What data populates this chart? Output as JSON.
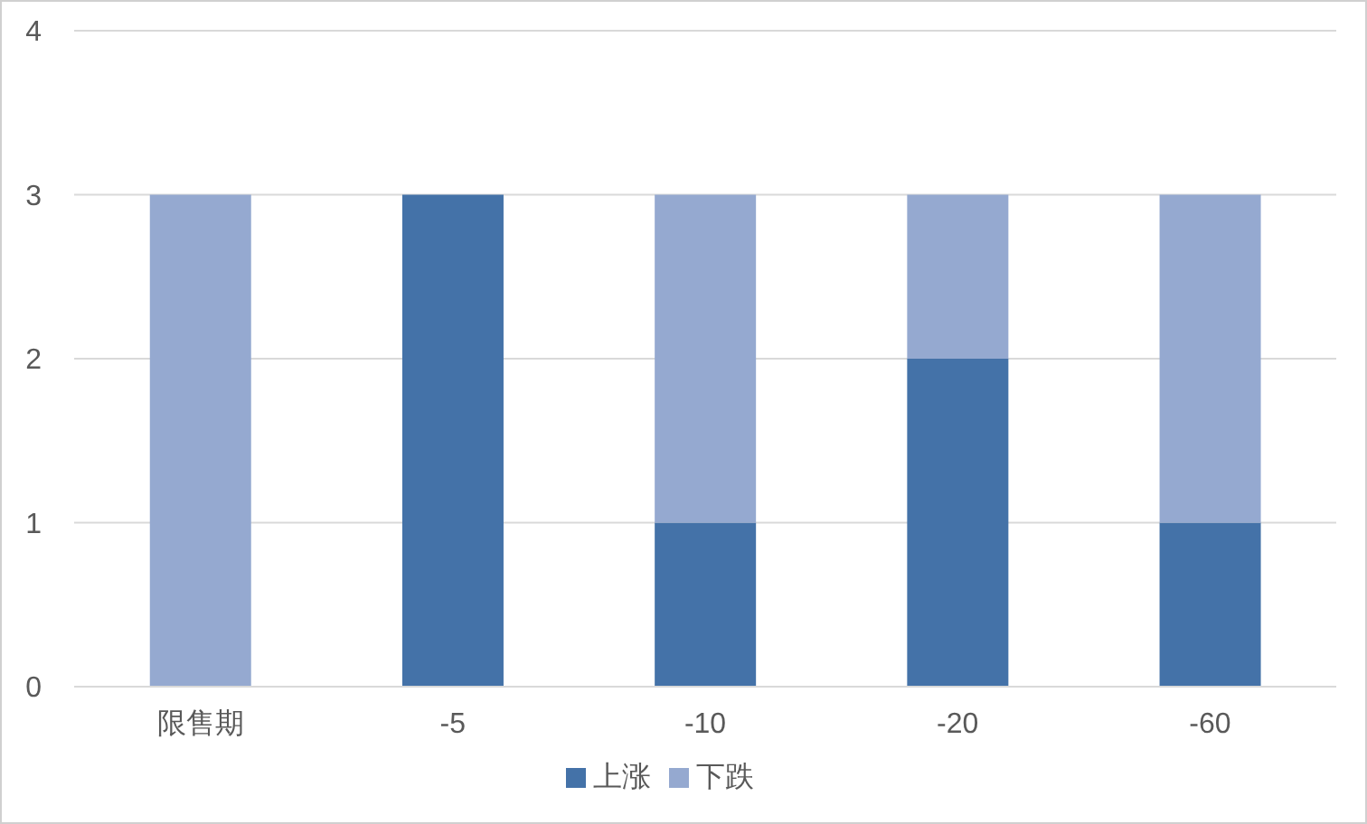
{
  "chart_data": {
    "type": "bar",
    "stacked": true,
    "categories": [
      "限售期",
      "-5",
      "-10",
      "-20",
      "-60"
    ],
    "series": [
      {
        "name": "上涨",
        "color": "#4472a8",
        "values": [
          0,
          3,
          1,
          2,
          1
        ]
      },
      {
        "name": "下跌",
        "color": "#95a9d0",
        "values": [
          3,
          0,
          2,
          1,
          2
        ]
      }
    ],
    "ylim": [
      0,
      4
    ],
    "yticks": [
      0,
      1,
      2,
      3,
      4
    ],
    "grid": "y",
    "legend": "bottom"
  }
}
